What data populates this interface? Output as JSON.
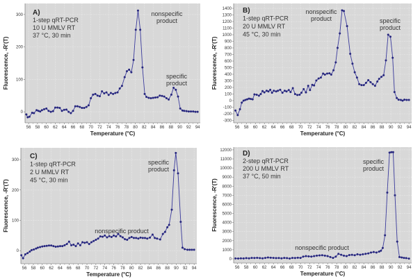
{
  "chart_data": [
    {
      "type": "line",
      "panel_label": "A)",
      "info": [
        "1-step qRT-PCR",
        "10 U MMLV RT",
        "37 °C, 30 min"
      ],
      "annotations": [
        "nonspecific product",
        "specific product"
      ],
      "xlabel": "Temperature (°C)",
      "ylabel": "Fluorescence, -R'(T)",
      "xlim": [
        55.2,
        94.6
      ],
      "ylim": [
        -34,
        334
      ],
      "xticks": [
        56,
        58,
        60,
        62,
        64,
        66,
        68,
        70,
        72,
        74,
        76,
        78,
        80,
        82,
        84,
        86,
        88,
        90,
        92,
        94
      ],
      "yticks": [
        0,
        100,
        200,
        300
      ],
      "grid": true,
      "x": [
        55.5,
        55.8,
        56.2,
        56.8,
        57.2,
        57.8,
        58.2,
        58.6,
        59,
        59.5,
        60,
        60.5,
        61,
        61.5,
        62,
        62.5,
        63,
        63.5,
        64,
        64.5,
        65,
        65.5,
        66,
        66.5,
        67,
        67.5,
        68,
        68.5,
        69,
        69.5,
        70,
        70.5,
        71,
        71.5,
        72,
        72.5,
        73,
        73.5,
        74,
        74.5,
        75,
        75.5,
        76,
        76.5,
        77,
        77.6,
        78.1,
        78.6,
        79.1,
        79.6,
        80.1,
        80.6,
        81.1,
        81.6,
        82.1,
        82.5,
        83,
        83.5,
        84,
        84.5,
        85,
        85.5,
        86,
        86.5,
        87,
        87.5,
        88.1,
        88.6,
        89.1,
        89.6,
        90.1,
        90.6,
        91,
        91.5,
        92,
        92.5,
        93,
        93.5,
        94
      ],
      "y": [
        -8,
        -17,
        -15,
        -3,
        -4,
        5,
        3,
        1,
        5,
        8,
        10,
        3,
        0,
        2,
        13,
        13,
        12,
        3,
        6,
        7,
        0,
        -4,
        3,
        17,
        17,
        15,
        12,
        12,
        15,
        20,
        42,
        53,
        55,
        50,
        48,
        63,
        57,
        60,
        52,
        58,
        55,
        58,
        60,
        72,
        80,
        107,
        125,
        130,
        122,
        160,
        253,
        312,
        253,
        137,
        55,
        46,
        43,
        42,
        43,
        44,
        45,
        50,
        49,
        47,
        42,
        38,
        53,
        74,
        68,
        47,
        10,
        4,
        3,
        2,
        1,
        1,
        1,
        0,
        0
      ]
    },
    {
      "type": "line",
      "panel_label": "B)",
      "info": [
        "1-step qRT-PCR",
        "20 U MMLV RT",
        "45 °C, 30 min"
      ],
      "annotations": [
        "nonspecific product",
        "specific product"
      ],
      "xlabel": "Temperature (°C)",
      "ylabel": "Fluorescence, -R'(T)",
      "xlim": [
        55.2,
        94.6
      ],
      "ylim": [
        -337,
        1474
      ],
      "xticks": [
        56,
        58,
        60,
        62,
        64,
        66,
        68,
        70,
        72,
        74,
        76,
        78,
        80,
        82,
        84,
        86,
        88,
        90,
        92,
        94
      ],
      "yticks": [
        -300,
        -200,
        -100,
        0,
        100,
        200,
        300,
        400,
        500,
        600,
        700,
        800,
        900,
        1000,
        1100,
        1200,
        1300,
        1400
      ],
      "grid": true,
      "x": [
        55.6,
        56.1,
        56.6,
        57,
        57.4,
        57.8,
        58.2,
        58.6,
        59,
        59.4,
        59.8,
        60.3,
        60.8,
        61.2,
        61.6,
        62,
        62.5,
        62.9,
        63.3,
        63.7,
        64.1,
        64.6,
        65,
        65.5,
        66,
        66.5,
        66.9,
        67.4,
        67.8,
        68.3,
        68.8,
        69.3,
        69.8,
        70.2,
        70.7,
        71.2,
        71.7,
        72.1,
        72.6,
        73,
        73.5,
        74,
        74.5,
        75,
        75.4,
        75.9,
        76.4,
        76.8,
        77.3,
        77.8,
        78.2,
        78.7,
        79.2,
        79.6,
        80.3,
        81,
        81.5,
        82,
        82.5,
        83,
        83.5,
        84,
        84.5,
        85,
        85.5,
        86,
        86.5,
        87,
        87.4,
        87.9,
        88.4,
        88.9,
        89.4,
        89.9,
        90.4,
        90.8,
        91.3,
        91.7,
        92.2,
        92.6,
        93,
        93.5,
        94
      ],
      "y": [
        -150,
        -220,
        -130,
        -30,
        0,
        10,
        20,
        30,
        25,
        20,
        95,
        90,
        75,
        100,
        145,
        125,
        150,
        140,
        165,
        120,
        150,
        140,
        150,
        165,
        120,
        150,
        140,
        160,
        130,
        190,
        100,
        85,
        90,
        120,
        175,
        125,
        225,
        160,
        240,
        230,
        305,
        335,
        350,
        410,
        395,
        410,
        415,
        395,
        460,
        580,
        800,
        1020,
        1370,
        1360,
        1130,
        710,
        560,
        430,
        350,
        250,
        235,
        235,
        270,
        310,
        280,
        250,
        225,
        290,
        330,
        360,
        385,
        610,
        1000,
        970,
        650,
        130,
        40,
        15,
        10,
        0,
        15,
        10,
        10
      ]
    },
    {
      "type": "line",
      "panel_label": "C)",
      "info": [
        "1-step qRT-PCR",
        "2 U MMLV RT",
        "45 °C, 30 min"
      ],
      "annotations": [
        "specific product",
        "nonspecific product"
      ],
      "xlabel": "Temperature (°C)",
      "ylabel": "Fluorescence, -R'(T)",
      "xlim": [
        55.2,
        94.6
      ],
      "ylim": [
        -43,
        339
      ],
      "xticks": [
        56,
        58,
        60,
        62,
        64,
        66,
        68,
        70,
        72,
        74,
        76,
        78,
        80,
        82,
        84,
        86,
        88,
        90,
        92,
        94
      ],
      "yticks": [
        0,
        100,
        200,
        300
      ],
      "grid": true,
      "x": [
        55.3,
        55.7,
        56.2,
        56.7,
        57.2,
        57.6,
        58.1,
        58.6,
        59,
        59.5,
        60,
        60.5,
        61,
        61.5,
        62,
        62.5,
        63,
        63.5,
        64,
        64.5,
        65,
        65.5,
        66,
        66.5,
        67,
        67.5,
        68,
        68.5,
        69,
        69.5,
        70,
        70.5,
        71,
        71.5,
        72,
        72.5,
        73,
        73.5,
        74,
        74.5,
        75,
        75.5,
        76,
        76.5,
        77,
        77.5,
        78,
        78.5,
        79,
        79.5,
        80,
        80.5,
        81,
        81.5,
        82,
        82.5,
        83,
        83.5,
        84.1,
        84.7,
        85.2,
        85.7,
        86.4,
        87,
        87.5,
        88,
        88.4,
        89,
        89.5,
        89.9,
        90.4,
        91,
        91.4,
        91.9,
        92.5,
        93,
        93.5,
        94
      ],
      "y": [
        -15,
        -25,
        -12,
        -8,
        -3,
        2,
        4,
        7,
        10,
        12,
        14,
        15,
        16,
        17,
        17,
        15,
        13,
        14,
        15,
        15,
        18,
        22,
        30,
        18,
        20,
        15,
        24,
        18,
        28,
        26,
        28,
        22,
        28,
        32,
        36,
        40,
        47,
        46,
        50,
        44,
        48,
        45,
        50,
        47,
        55,
        48,
        44,
        38,
        36,
        42,
        45,
        42,
        42,
        40,
        43,
        42,
        42,
        40,
        43,
        53,
        42,
        40,
        37,
        55,
        62,
        77,
        85,
        135,
        265,
        322,
        255,
        95,
        10,
        5,
        3,
        3,
        3,
        3
      ]
    },
    {
      "type": "line",
      "panel_label": "D)",
      "info": [
        "2-step qRT-PCR",
        "200 U MMLV RT",
        "37 °C, 50 min"
      ],
      "annotations": [
        "specific product",
        "nonspecific product"
      ],
      "xlabel": "Temperature (°C)",
      "ylabel": "Fluorescence, -R'(T)",
      "xlim": [
        55.2,
        94.6
      ],
      "ylim": [
        -460,
        12300
      ],
      "xticks": [
        56,
        58,
        60,
        62,
        64,
        66,
        68,
        70,
        72,
        74,
        76,
        78,
        80,
        82,
        84,
        86,
        88,
        90,
        92,
        94
      ],
      "yticks": [
        0,
        1000,
        2000,
        3000,
        4000,
        5000,
        6000,
        7000,
        8000,
        9000,
        10000,
        11000,
        12000
      ],
      "grid": true,
      "x": [
        55.6,
        56.2,
        56.8,
        57.4,
        58,
        58.6,
        59.2,
        59.8,
        60.4,
        61,
        61.6,
        62.2,
        62.8,
        63.4,
        64,
        64.6,
        65.2,
        65.8,
        66.4,
        67,
        67.6,
        68.2,
        68.8,
        69.4,
        70,
        70.6,
        71.2,
        71.8,
        72.4,
        73,
        73.6,
        74.2,
        74.8,
        75.4,
        76,
        76.6,
        77.2,
        77.8,
        78.4,
        79,
        79.6,
        80.2,
        80.8,
        81.4,
        82,
        82.6,
        83.2,
        83.8,
        84.4,
        85,
        85.6,
        86.2,
        86.8,
        87.4,
        87.8,
        88.2,
        88.7,
        89.2,
        89.7,
        90.1,
        90.5,
        90.9,
        91.4,
        91.9,
        92.4,
        92.9,
        93.4,
        94
      ],
      "y": [
        50,
        40,
        60,
        50,
        80,
        60,
        100,
        90,
        110,
        80,
        60,
        100,
        150,
        120,
        100,
        80,
        90,
        60,
        100,
        80,
        40,
        100,
        90,
        120,
        100,
        250,
        300,
        280,
        250,
        300,
        350,
        380,
        400,
        350,
        300,
        200,
        100,
        250,
        550,
        450,
        350,
        300,
        420,
        450,
        400,
        500,
        450,
        500,
        550,
        600,
        700,
        750,
        700,
        800,
        900,
        1200,
        2600,
        7300,
        11700,
        11750,
        11750,
        7000,
        1900,
        200,
        150,
        100,
        80,
        30
      ]
    }
  ],
  "colors": {
    "plot_bg": "#d8d8d8",
    "grid": "#f2f2f2",
    "line": "#3a3a9c",
    "marker": "#27277e"
  }
}
